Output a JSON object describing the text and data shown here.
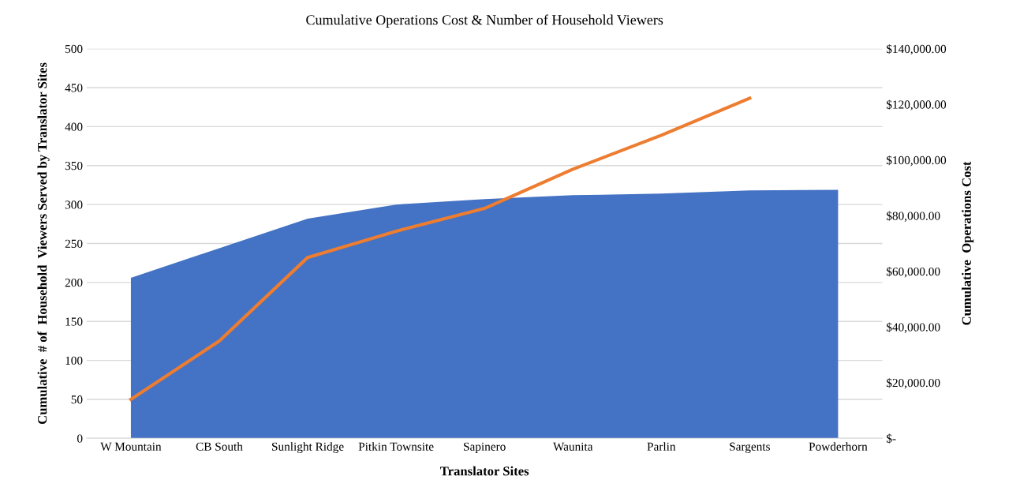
{
  "chart_data": {
    "type": "area",
    "title": "Cumulative Operations Cost & Number of Household Viewers",
    "xlabel": "Translator Sites",
    "ylabel": "Cumulative  # of  Household  Viewers Served by Translator Sites",
    "y2label": "Cumulative  Operations Cost",
    "categories": [
      "W Mountain",
      "CB South",
      "Sunlight Ridge",
      "Pitkin Townsite",
      "Sapinero",
      "Waunita",
      "Parlin",
      "Sargents",
      "Powderhorn"
    ],
    "series": [
      {
        "color": "#4472c4",
        "values": [
          206,
          244,
          282,
          300,
          307,
          312,
          314,
          318,
          319
        ]
      },
      {
        "type": "line",
        "axis": "y2",
        "color": "#ed7d31",
        "values": [
          14000,
          35000,
          65000,
          74400,
          82600,
          96700,
          108900,
          122200,
          null
        ]
      }
    ],
    "ylim": [
      0,
      500
    ],
    "yticks": [
      0,
      50,
      100,
      150,
      200,
      250,
      300,
      350,
      400,
      450,
      500
    ],
    "y2lim": [
      0,
      140000
    ],
    "y2ticks": [
      {
        "value": 0,
        "label": "$-"
      },
      {
        "value": 20000,
        "label": "$20,000.00"
      },
      {
        "value": 40000,
        "label": "$40,000.00"
      },
      {
        "value": 60000,
        "label": "$60,000.00"
      },
      {
        "value": 80000,
        "label": "$80,000.00"
      },
      {
        "value": 100000,
        "label": "$100,000.00"
      },
      {
        "value": 120000,
        "label": "$120,000.00"
      },
      {
        "value": 140000,
        "label": "$140,000.00"
      }
    ],
    "grid": "y",
    "line_style": "solid"
  }
}
